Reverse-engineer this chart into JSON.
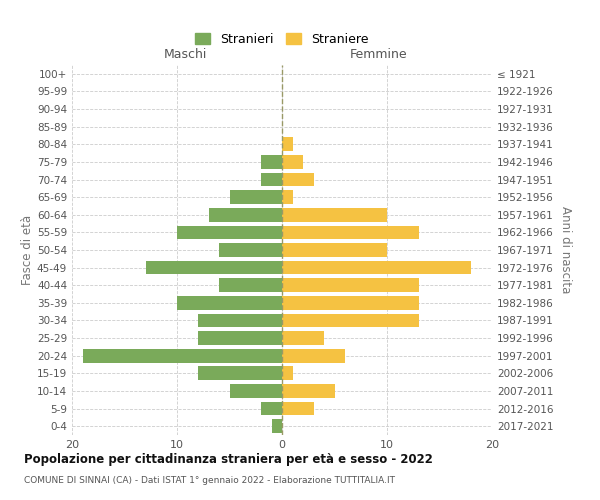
{
  "age_groups": [
    "0-4",
    "5-9",
    "10-14",
    "15-19",
    "20-24",
    "25-29",
    "30-34",
    "35-39",
    "40-44",
    "45-49",
    "50-54",
    "55-59",
    "60-64",
    "65-69",
    "70-74",
    "75-79",
    "80-84",
    "85-89",
    "90-94",
    "95-99",
    "100+"
  ],
  "birth_years": [
    "2017-2021",
    "2012-2016",
    "2007-2011",
    "2002-2006",
    "1997-2001",
    "1992-1996",
    "1987-1991",
    "1982-1986",
    "1977-1981",
    "1972-1976",
    "1967-1971",
    "1962-1966",
    "1957-1961",
    "1952-1956",
    "1947-1951",
    "1942-1946",
    "1937-1941",
    "1932-1936",
    "1927-1931",
    "1922-1926",
    "≤ 1921"
  ],
  "males": [
    1,
    2,
    5,
    8,
    19,
    8,
    8,
    10,
    6,
    13,
    6,
    10,
    7,
    5,
    2,
    2,
    0,
    0,
    0,
    0,
    0
  ],
  "females": [
    0,
    3,
    5,
    1,
    6,
    4,
    13,
    13,
    13,
    18,
    10,
    13,
    10,
    1,
    3,
    2,
    1,
    0,
    0,
    0,
    0
  ],
  "male_color": "#7aaa5a",
  "female_color": "#f5c242",
  "title": "Popolazione per cittadinanza straniera per età e sesso - 2022",
  "subtitle": "COMUNE DI SINNAI (CA) - Dati ISTAT 1° gennaio 2022 - Elaborazione TUTTITALIA.IT",
  "ylabel_left": "Fasce di età",
  "ylabel_right": "Anni di nascita",
  "xlabel_left": "Maschi",
  "xlabel_right": "Femmine",
  "legend_male": "Stranieri",
  "legend_female": "Straniere",
  "xlim": 20,
  "background_color": "#ffffff",
  "grid_color": "#cccccc"
}
